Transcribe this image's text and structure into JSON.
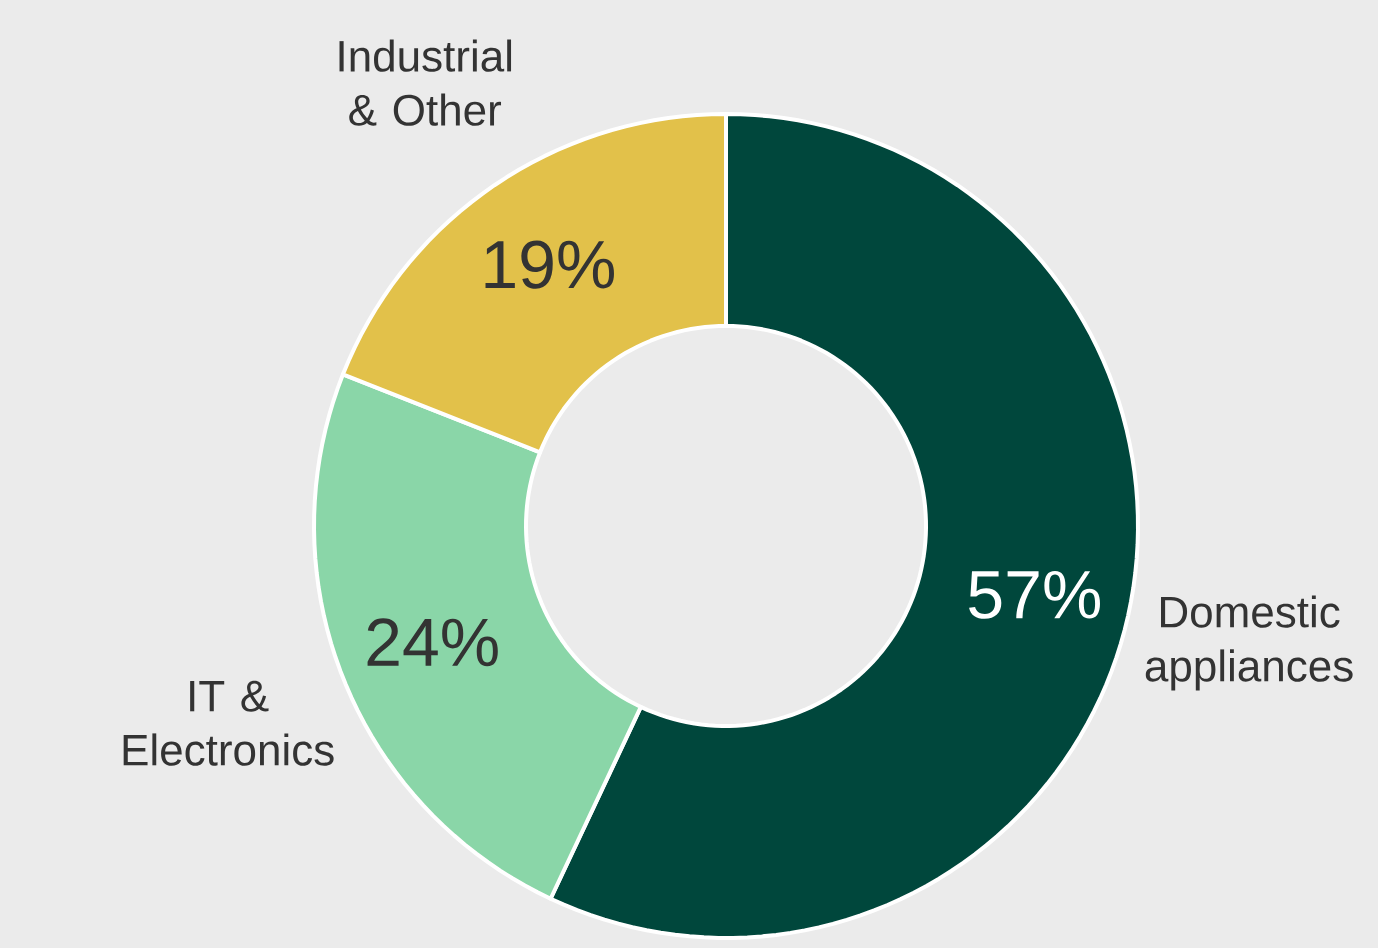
{
  "chart_data": {
    "type": "donut",
    "categories": [
      "Domestic appliances",
      "IT & Electronics",
      "Industrial & Other"
    ],
    "values": [
      57,
      24,
      19
    ],
    "colors": [
      "#00473c",
      "#8ad6a8",
      "#e2c14a"
    ],
    "value_labels": [
      "57%",
      "24%",
      "19%"
    ]
  }
}
